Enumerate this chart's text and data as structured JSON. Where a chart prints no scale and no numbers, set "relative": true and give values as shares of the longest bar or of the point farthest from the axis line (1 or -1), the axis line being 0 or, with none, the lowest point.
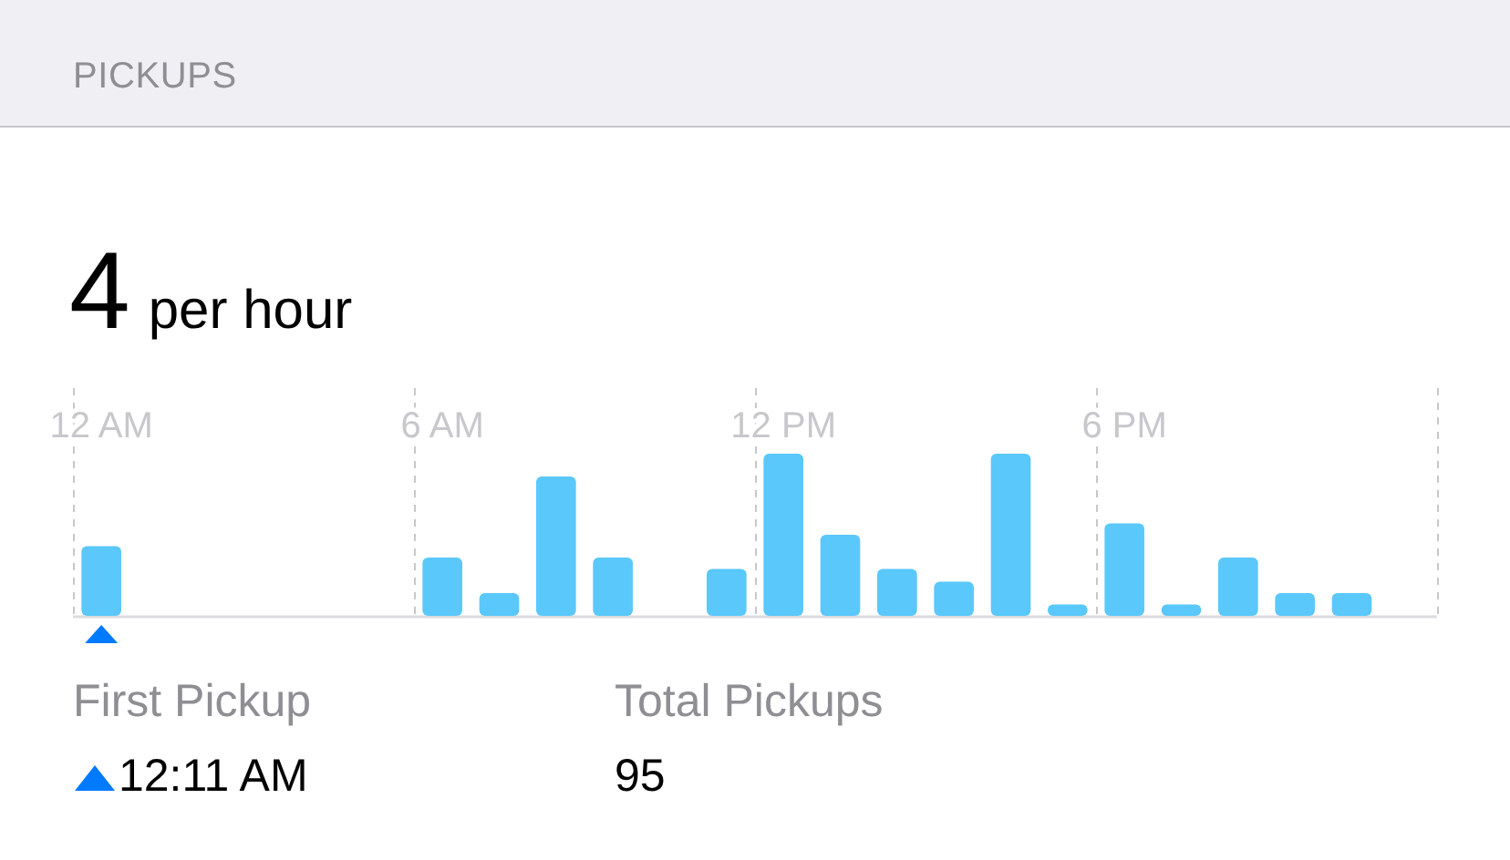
{
  "chart_data": {
    "type": "bar",
    "title": "PICKUPS",
    "subtitle": "4 per hour",
    "categories": [
      "12 AM",
      null,
      null,
      null,
      null,
      null,
      "6 AM",
      null,
      null,
      null,
      null,
      null,
      "12 PM",
      null,
      null,
      null,
      null,
      null,
      "6 PM",
      null,
      null,
      null,
      null,
      null
    ],
    "values": [
      0.43,
      0,
      0,
      0,
      0,
      0,
      0.36,
      0.14,
      0.86,
      0.36,
      0,
      0.29,
      1,
      0.5,
      0.29,
      0.21,
      1,
      0.07,
      0.57,
      0.07,
      0.36,
      0.14,
      0.14,
      0
    ],
    "color": "#5ac8fa",
    "relative": true,
    "grid": "x",
    "annotations": [
      "First Pickup",
      "12:11 AM",
      "Total Pickups",
      "95"
    ]
  }
}
